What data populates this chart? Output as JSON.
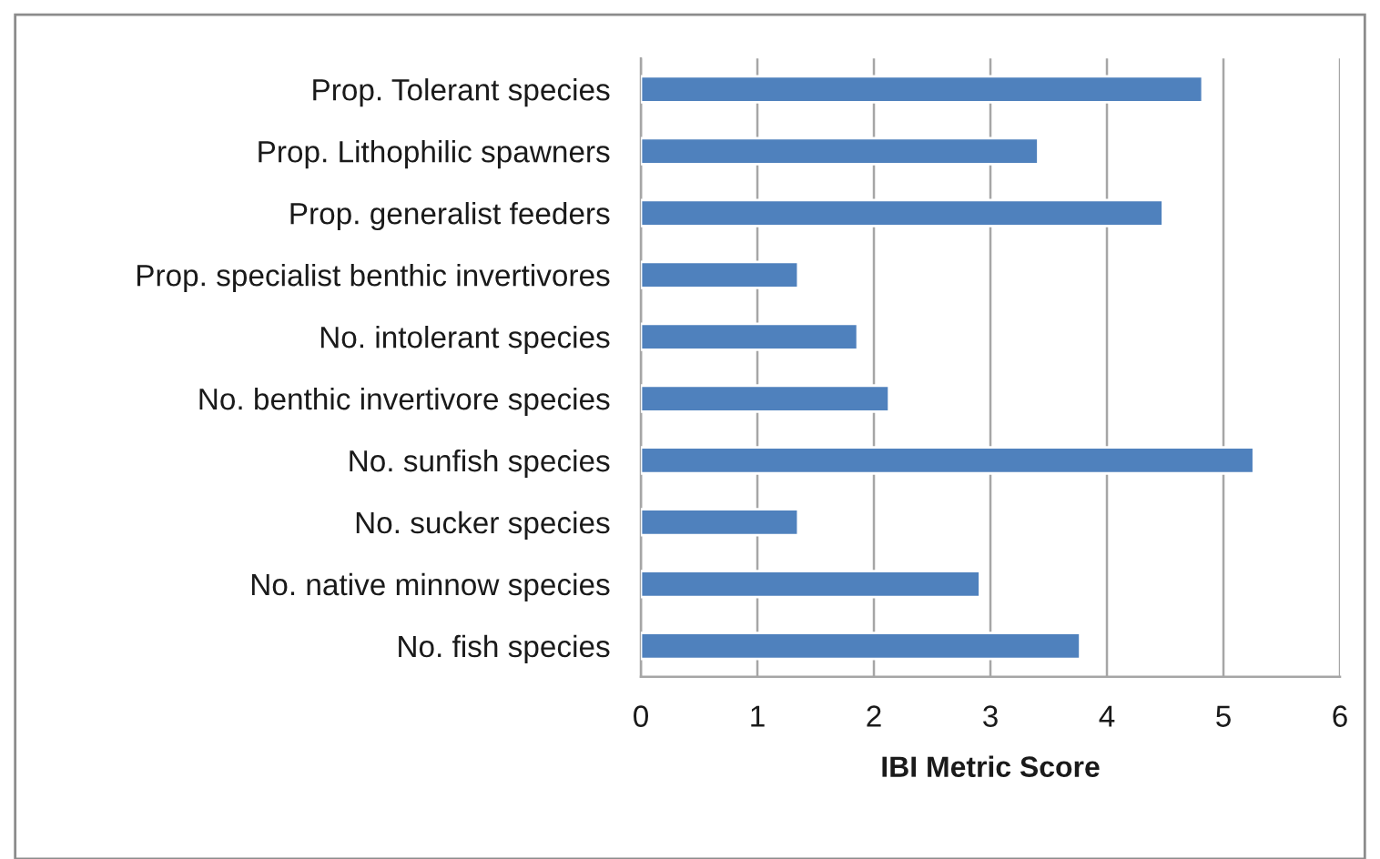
{
  "chart_data": {
    "type": "bar",
    "orientation": "horizontal",
    "xlabel": "IBI Metric Score",
    "categories": [
      "Prop. Tolerant species",
      "Prop. Lithophilic spawners",
      "Prop. generalist feeders",
      "Prop. specialist benthic invertivores",
      "No. intolerant species",
      "No. benthic invertivore species",
      "No. sunfish species",
      "No. sucker species",
      "No. native minnow species",
      "No. fish species"
    ],
    "values": [
      4.82,
      3.41,
      4.48,
      1.35,
      1.86,
      2.13,
      5.26,
      1.35,
      2.91,
      3.77
    ],
    "color": "#4f81bd",
    "xlim": [
      0,
      6
    ],
    "xticks": [
      0,
      1,
      2,
      3,
      4,
      5,
      6
    ],
    "grid": "x"
  }
}
